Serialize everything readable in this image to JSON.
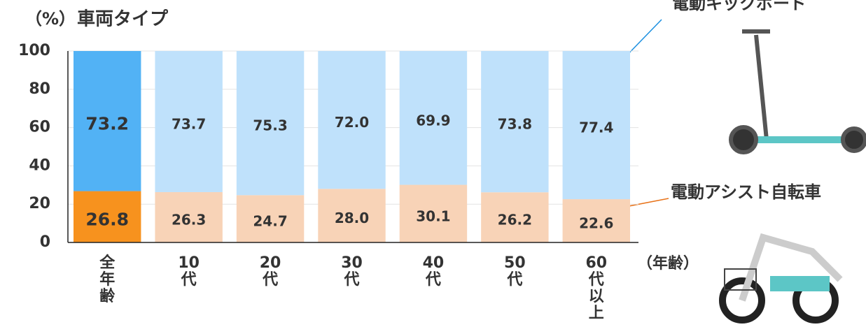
{
  "chart_data": {
    "type": "stacked_bar",
    "title": "車両タイプ",
    "y_label": "（%）",
    "x_label": "（年齢）",
    "categories": [
      "全年齢",
      "10代",
      "20代",
      "30代",
      "40代",
      "50代",
      "60代以上"
    ],
    "series": [
      {
        "name": "電動アシスト自転車",
        "color": "#f8d3b7",
        "label_color": "#e8731a",
        "colors": [
          "#f7921e",
          "#f8d3b7",
          "#f8d3b7",
          "#f8d3b7",
          "#f8d3b7",
          "#f8d3b7",
          "#f8d3b7"
        ],
        "values": [
          26.8,
          26.3,
          24.7,
          28.0,
          30.1,
          26.2,
          22.6
        ],
        "value_labels": [
          "26.8",
          "26.3",
          "24.7",
          "28.0",
          "30.1",
          "26.2",
          "22.6"
        ]
      },
      {
        "name": "電動キックボード",
        "color": "#bfe1fb",
        "label_color": "#1a8fe0",
        "colors": [
          "#52b2f5",
          "#bfe1fb",
          "#bfe1fb",
          "#bfe1fb",
          "#bfe1fb",
          "#bfe1fb",
          "#bfe1fb"
        ],
        "values": [
          73.2,
          73.7,
          75.3,
          72.0,
          69.9,
          73.8,
          77.4
        ],
        "value_labels": [
          "73.2",
          "73.7",
          "75.3",
          "72.0",
          "69.9",
          "73.8",
          "77.4"
        ]
      }
    ],
    "ylim": [
      0,
      100
    ],
    "yticks": [
      0,
      20,
      40,
      60,
      80,
      100
    ],
    "grid": true
  }
}
